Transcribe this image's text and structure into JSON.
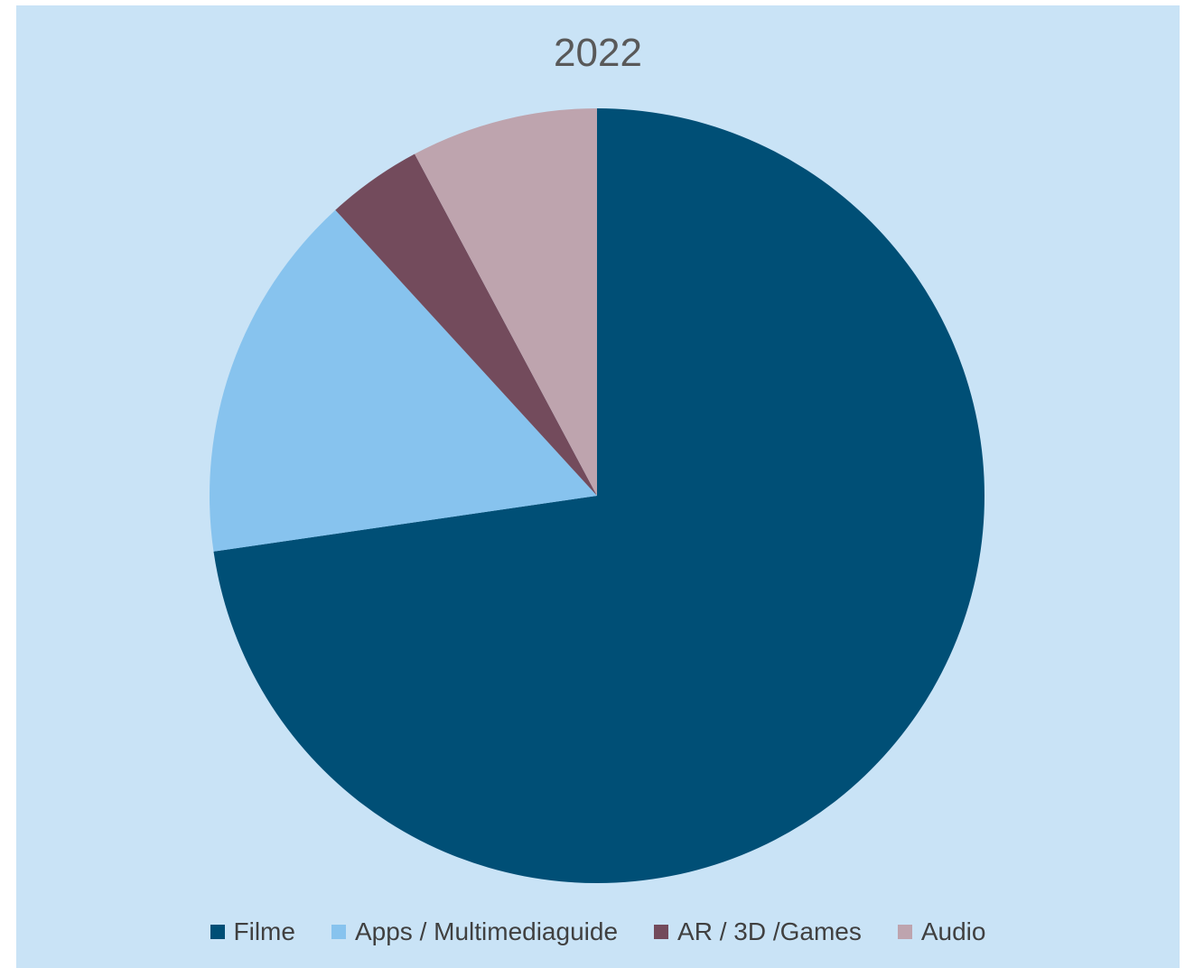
{
  "chart_data": {
    "type": "pie",
    "title": "2022",
    "categories": [
      "Filme",
      "Apps / Multimediaguide",
      "AR / 3D /Games",
      "Audio"
    ],
    "values": [
      72.7,
      15.5,
      4.0,
      7.8
    ],
    "colors": [
      "#004f76",
      "#87c3ee",
      "#734b5c",
      "#bea4ae"
    ],
    "start_angle_deg": 0,
    "direction": "clockwise",
    "legend_position": "bottom",
    "background": "#c9e3f6"
  }
}
